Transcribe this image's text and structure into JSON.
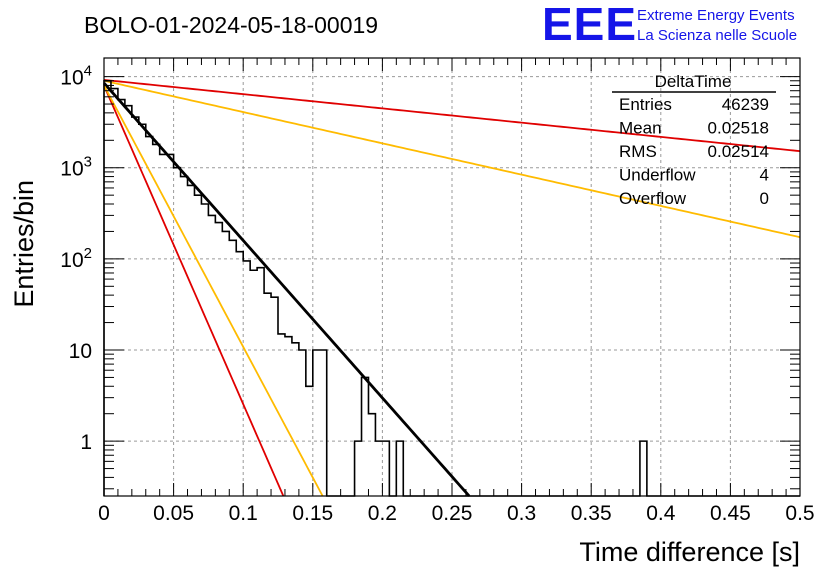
{
  "chart_data": {
    "type": "histogram",
    "title": "BOLO-01-2024-05-18-00019",
    "xlabel": "Time difference [s]",
    "ylabel": "Entries/bin",
    "xlim": [
      0,
      0.5
    ],
    "ylim": [
      0.25,
      16000
    ],
    "yscale": "log",
    "grid": true,
    "x_tick_labels": [
      "0",
      "0.05",
      "0.1",
      "0.15",
      "0.2",
      "0.25",
      "0.3",
      "0.35",
      "0.4",
      "0.45",
      "0.5"
    ],
    "y_tick_labels": [
      {
        "base": "1",
        "exp": ""
      },
      {
        "base": "10",
        "exp": ""
      },
      {
        "base": "10",
        "exp": "2"
      },
      {
        "base": "10",
        "exp": "3"
      },
      {
        "base": "10",
        "exp": "4"
      }
    ],
    "histogram": {
      "bin_width": 0.005,
      "x_start": 0,
      "counts": [
        9000,
        7400,
        5600,
        4800,
        3600,
        3000,
        2200,
        1800,
        1400,
        1400,
        1000,
        800,
        640,
        500,
        400,
        300,
        250,
        200,
        160,
        120,
        95,
        75,
        80,
        42,
        38,
        15,
        14,
        12,
        10,
        4,
        10,
        10,
        0,
        0.1,
        0,
        0,
        1,
        5,
        2,
        1,
        1,
        0,
        1,
        0,
        0,
        0,
        0,
        0,
        0,
        0,
        0,
        0,
        0,
        0,
        0,
        0,
        0,
        0,
        0,
        0,
        0,
        0,
        0,
        0,
        0,
        0,
        0,
        0,
        0,
        0,
        0,
        0,
        0,
        0,
        0,
        0,
        0,
        1,
        0,
        0,
        0,
        0,
        0,
        0,
        0,
        0,
        0,
        0,
        0,
        0,
        0,
        0,
        0,
        0,
        0,
        0,
        0,
        0,
        0,
        0
      ],
      "color": "#000000"
    },
    "fit_curves": [
      {
        "a": 8500,
        "tau": 0.02514,
        "color": "#000000"
      },
      {
        "a": 8000,
        "tau": 0.01242,
        "color": "#e00000"
      },
      {
        "a": 8000,
        "tau": 0.01514,
        "color": "#ffbb00"
      },
      {
        "a": 9200,
        "tau": 0.2777,
        "color": "#e00000"
      },
      {
        "a": 9000,
        "tau": 0.1265,
        "color": "#ffbb00"
      }
    ],
    "stats_box": {
      "name": "DeltaTime",
      "rows": [
        {
          "label": "Entries",
          "value": "46239"
        },
        {
          "label": "Mean",
          "value": "0.02518"
        },
        {
          "label": "RMS",
          "value": "0.02514"
        },
        {
          "label": "Underflow",
          "value": "4"
        },
        {
          "label": "Overflow",
          "value": "0"
        }
      ]
    }
  },
  "logo": {
    "mark": "EEE",
    "line1": "Extreme Energy Events",
    "line2": "La Scienza nelle Scuole"
  }
}
